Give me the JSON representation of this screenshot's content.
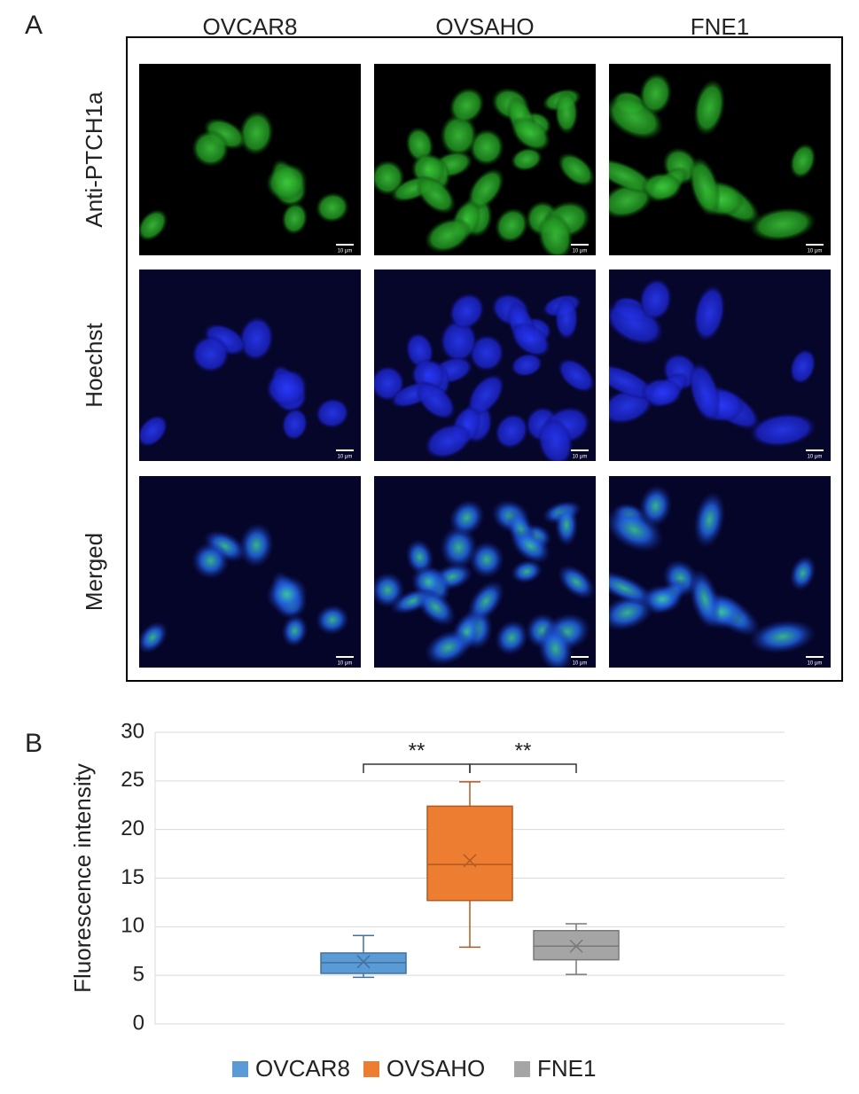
{
  "panel_a": {
    "label": "A",
    "columns": [
      "OVCAR8",
      "OVSAHO",
      "FNE1"
    ],
    "rows": [
      "Anti-PTCH1a",
      "Hoechst",
      "Merged"
    ],
    "scale_bar": "10 μm"
  },
  "chart_data": {
    "type": "box",
    "panel_label": "B",
    "y_label": "Fluorescence intensity",
    "ylim": [
      0,
      30
    ],
    "yticks": [
      0,
      5,
      10,
      15,
      20,
      25,
      30
    ],
    "grid": true,
    "series": [
      {
        "name": "OVCAR8",
        "color": "#5b9bd5",
        "min": 4.8,
        "q1": 5.2,
        "median": 6.3,
        "q3": 7.3,
        "max": 9.1,
        "mean": 6.4
      },
      {
        "name": "OVSAHO",
        "color": "#ed7d31",
        "min": 7.9,
        "q1": 12.7,
        "median": 16.4,
        "q3": 22.4,
        "max": 24.9,
        "mean": 16.8
      },
      {
        "name": "FNE1",
        "color": "#a5a5a5",
        "min": 5.1,
        "q1": 6.6,
        "median": 8.0,
        "q3": 9.6,
        "max": 10.3,
        "mean": 8.0
      }
    ],
    "annotations": [
      "**",
      "**"
    ]
  }
}
